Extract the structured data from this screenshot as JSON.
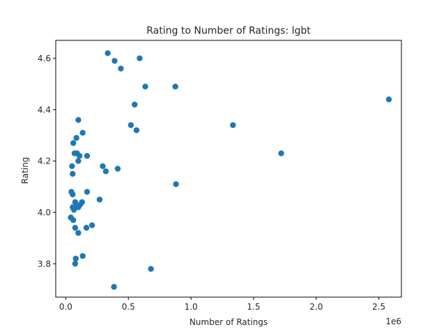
{
  "chart_data": {
    "type": "scatter",
    "title": "Rating to Number of Ratings: lgbt",
    "xlabel": "Number of Ratings",
    "ylabel": "Rating",
    "x_offset_text": "1e6",
    "x_scale_factor": 1000000,
    "xlim": [
      -80000,
      2680000
    ],
    "ylim": [
      3.67,
      4.67
    ],
    "x_ticks": [
      0,
      500000,
      1000000,
      1500000,
      2000000,
      2500000
    ],
    "x_tick_labels": [
      "0.0",
      "0.5",
      "1.0",
      "1.5",
      "2.0",
      "2.5"
    ],
    "y_ticks": [
      3.8,
      4.0,
      4.2,
      4.4,
      4.6
    ],
    "y_tick_labels": [
      "3.8",
      "4.0",
      "4.2",
      "4.4",
      "4.6"
    ],
    "grid": false,
    "marker_color": "#1f77b4",
    "series": [
      {
        "points": [
          [
            335000,
            4.62
          ],
          [
            390000,
            4.59
          ],
          [
            590000,
            4.6
          ],
          [
            440000,
            4.56
          ],
          [
            635000,
            4.49
          ],
          [
            875000,
            4.49
          ],
          [
            550000,
            4.42
          ],
          [
            2580000,
            4.44
          ],
          [
            1335000,
            4.34
          ],
          [
            520000,
            4.34
          ],
          [
            565000,
            4.32
          ],
          [
            100000,
            4.36
          ],
          [
            135000,
            4.31
          ],
          [
            85000,
            4.29
          ],
          [
            60000,
            4.27
          ],
          [
            70000,
            4.23
          ],
          [
            90000,
            4.23
          ],
          [
            110000,
            4.22
          ],
          [
            100000,
            4.2
          ],
          [
            170000,
            4.22
          ],
          [
            1720000,
            4.23
          ],
          [
            50000,
            4.18
          ],
          [
            295000,
            4.18
          ],
          [
            320000,
            4.16
          ],
          [
            415000,
            4.17
          ],
          [
            55000,
            4.15
          ],
          [
            880000,
            4.11
          ],
          [
            45000,
            4.08
          ],
          [
            170000,
            4.08
          ],
          [
            55000,
            4.07
          ],
          [
            270000,
            4.05
          ],
          [
            75000,
            4.04
          ],
          [
            130000,
            4.04
          ],
          [
            55000,
            4.02
          ],
          [
            65000,
            4.01
          ],
          [
            100000,
            4.02
          ],
          [
            115000,
            4.03
          ],
          [
            80000,
            4.02
          ],
          [
            40000,
            3.98
          ],
          [
            60000,
            3.97
          ],
          [
            75000,
            3.94
          ],
          [
            165000,
            3.94
          ],
          [
            210000,
            3.95
          ],
          [
            100000,
            3.92
          ],
          [
            135000,
            3.83
          ],
          [
            80000,
            3.82
          ],
          [
            75000,
            3.8
          ],
          [
            680000,
            3.78
          ],
          [
            385000,
            3.71
          ]
        ]
      }
    ]
  }
}
